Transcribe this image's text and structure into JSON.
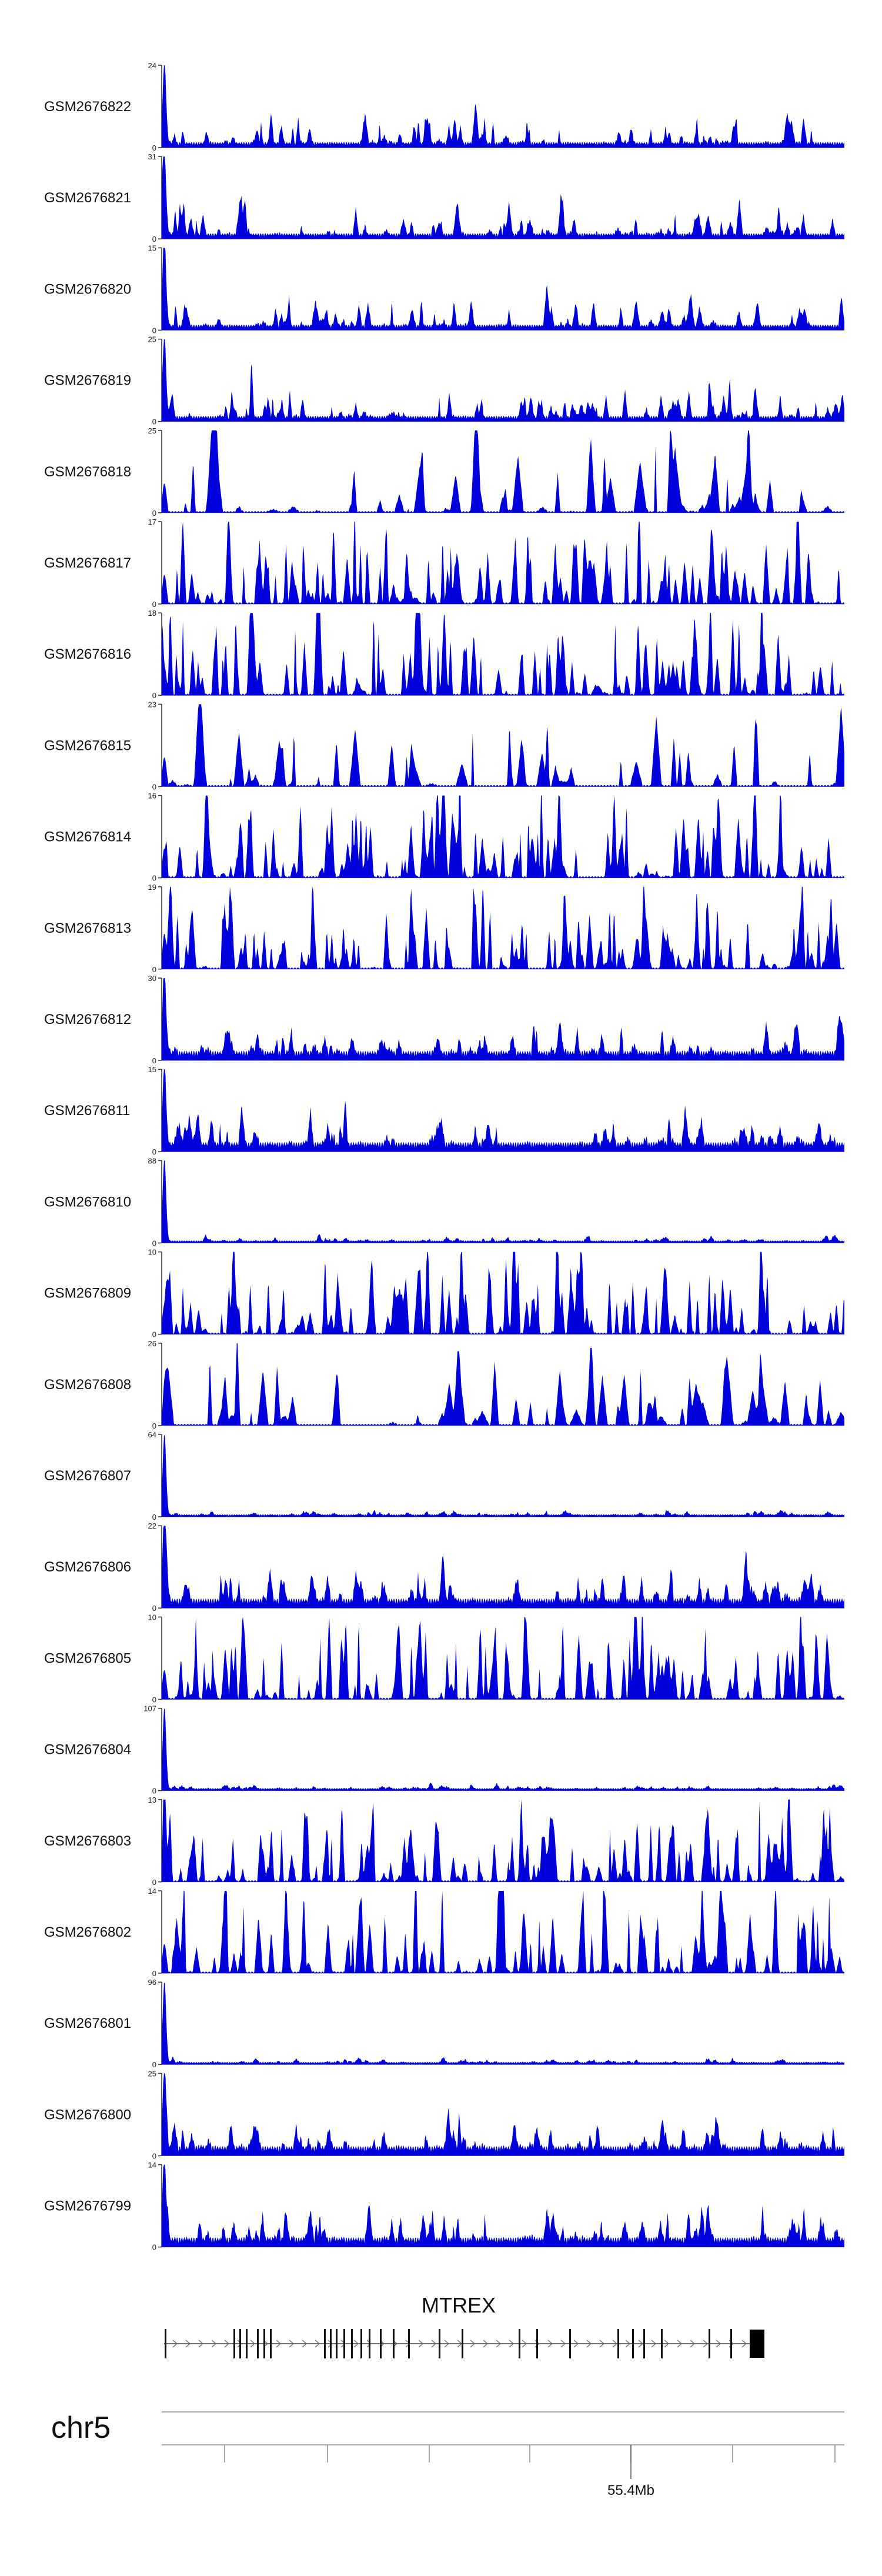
{
  "chart_data": {
    "type": "area",
    "series_color": "#0000dd",
    "gene": {
      "name": "MTREX",
      "strand": "+",
      "exon_count": 28,
      "coding_end_block": true
    },
    "chromosome": "chr5",
    "coordinate_axis": {
      "tick_label": "55.4Mb",
      "minor_tick_count": 8
    },
    "tracks": [
      {
        "name": "GSM2676822",
        "ymax": 24,
        "ymin": 0,
        "profile": "spike_low",
        "seed": 22
      },
      {
        "name": "GSM2676821",
        "ymax": 31,
        "ymin": 0,
        "profile": "spike_low",
        "seed": 21
      },
      {
        "name": "GSM2676820",
        "ymax": 15,
        "ymin": 0,
        "profile": "spike_low",
        "seed": 20
      },
      {
        "name": "GSM2676819",
        "ymax": 25,
        "ymin": 0,
        "profile": "spike_low",
        "seed": 19
      },
      {
        "name": "GSM2676818",
        "ymax": 25,
        "ymin": 0,
        "profile": "sparse",
        "seed": 18
      },
      {
        "name": "GSM2676817",
        "ymax": 17,
        "ymin": 0,
        "profile": "dense",
        "seed": 17
      },
      {
        "name": "GSM2676816",
        "ymax": 18,
        "ymin": 0,
        "profile": "dense",
        "seed": 16
      },
      {
        "name": "GSM2676815",
        "ymax": 23,
        "ymin": 0,
        "profile": "sparse",
        "seed": 15
      },
      {
        "name": "GSM2676814",
        "ymax": 16,
        "ymin": 0,
        "profile": "dense",
        "seed": 14
      },
      {
        "name": "GSM2676813",
        "ymax": 19,
        "ymin": 0,
        "profile": "dense",
        "seed": 13
      },
      {
        "name": "GSM2676812",
        "ymax": 30,
        "ymin": 0,
        "profile": "spike_mid",
        "seed": 12
      },
      {
        "name": "GSM2676811",
        "ymax": 15,
        "ymin": 0,
        "profile": "spike_mid",
        "seed": 11
      },
      {
        "name": "GSM2676810",
        "ymax": 88,
        "ymin": 0,
        "profile": "spike_flat",
        "seed": 10
      },
      {
        "name": "GSM2676809",
        "ymax": 10,
        "ymin": 0,
        "profile": "dense",
        "seed": 9
      },
      {
        "name": "GSM2676808",
        "ymax": 26,
        "ymin": 0,
        "profile": "sparse",
        "seed": 8
      },
      {
        "name": "GSM2676807",
        "ymax": 64,
        "ymin": 0,
        "profile": "spike_flat",
        "seed": 7
      },
      {
        "name": "GSM2676806",
        "ymax": 22,
        "ymin": 0,
        "profile": "spike_mid",
        "seed": 6
      },
      {
        "name": "GSM2676805",
        "ymax": 10,
        "ymin": 0,
        "profile": "dense",
        "seed": 5
      },
      {
        "name": "GSM2676804",
        "ymax": 107,
        "ymin": 0,
        "profile": "spike_flat",
        "seed": 4
      },
      {
        "name": "GSM2676803",
        "ymax": 13,
        "ymin": 0,
        "profile": "dense",
        "seed": 3
      },
      {
        "name": "GSM2676802",
        "ymax": 14,
        "ymin": 0,
        "profile": "dense",
        "seed": 2
      },
      {
        "name": "GSM2676801",
        "ymax": 96,
        "ymin": 0,
        "profile": "spike_flat",
        "seed": 1
      },
      {
        "name": "GSM2676800",
        "ymax": 25,
        "ymin": 0,
        "profile": "spike_mid",
        "seed": 100
      },
      {
        "name": "GSM2676799",
        "ymax": 14,
        "ymin": 0,
        "profile": "spike_mid",
        "seed": 99
      }
    ]
  }
}
